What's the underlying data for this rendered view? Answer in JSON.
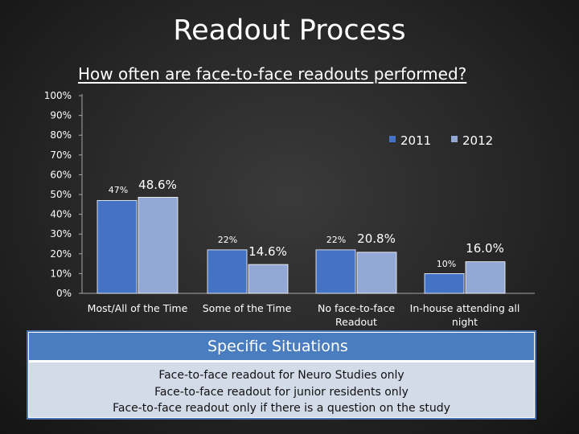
{
  "slide": {
    "title": "Readout Process"
  },
  "chart_data": {
    "type": "bar",
    "title": "How often are face-to-face readouts performed?",
    "categories": [
      "Most/All of the Time",
      "Some of the Time",
      "No face-to-face Readout",
      "In-house attending all night"
    ],
    "category_lines": [
      [
        "Most/All of the Time"
      ],
      [
        "Some of the Time"
      ],
      [
        "No face-to-face",
        "Readout"
      ],
      [
        "In-house attending all",
        "night"
      ]
    ],
    "series": [
      {
        "name": "2011",
        "values": [
          47,
          22,
          22,
          10
        ],
        "labels": [
          "47%",
          "22%",
          "22%",
          "10%"
        ],
        "color": "#4472c4"
      },
      {
        "name": "2012",
        "values": [
          48.6,
          14.6,
          20.8,
          16.0
        ],
        "labels": [
          "48.6%",
          "14.6%",
          "20.8%",
          "16.0%"
        ],
        "color": "#94a8d6"
      }
    ],
    "ylim": [
      0,
      100
    ],
    "yticks": [
      "0%",
      "10%",
      "20%",
      "30%",
      "40%",
      "50%",
      "60%",
      "70%",
      "80%",
      "90%",
      "100%"
    ],
    "legend_position": "top-right",
    "grid": false
  },
  "situations": {
    "header": "Specific Situations",
    "items": [
      "Face-to-face readout for Neuro Studies only",
      "Face-to-face readout for junior residents only",
      "Face-to-face readout only if there is a question on the study"
    ]
  }
}
